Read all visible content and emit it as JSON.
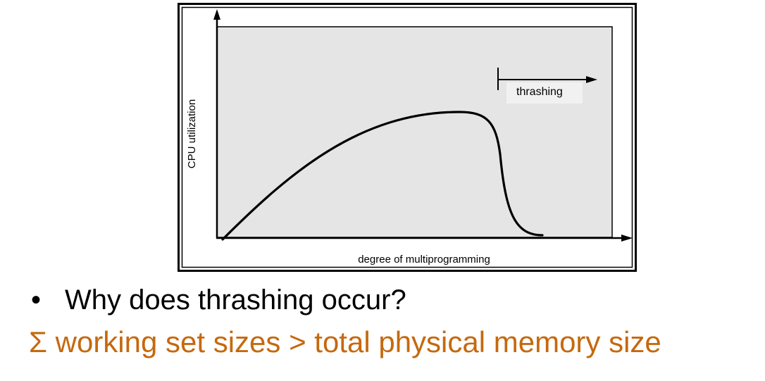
{
  "figure": {
    "y_axis_label": "CPU utilization",
    "x_axis_label": "degree of multiprogramming",
    "thrashing_label": "thrashing",
    "colors": {
      "frame": "#000000",
      "plot_fill": "#e5e5e5",
      "curve": "#000000"
    }
  },
  "slide": {
    "bullet_symbol": "•",
    "bullet_text": "Why does thrashing occur?",
    "answer_text": "Σ working set sizes > total physical memory size",
    "answer_color": "#c5690e"
  }
}
